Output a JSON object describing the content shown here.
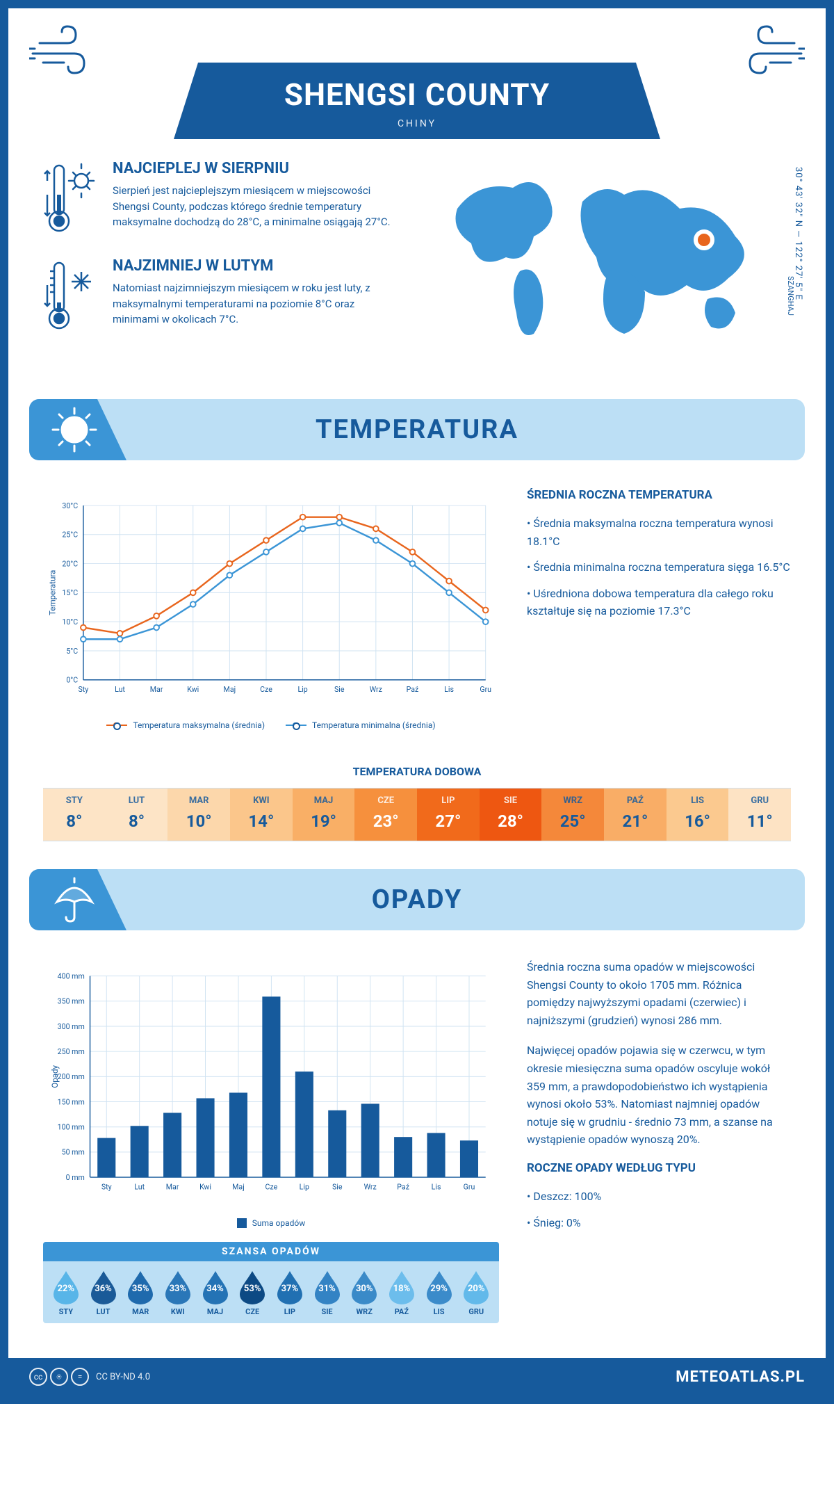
{
  "header": {
    "title": "SHENGSI COUNTY",
    "country": "CHINY",
    "coords": "30° 43' 32\" N — 122° 27' 5\" E",
    "timezone": "SZANGHAJ"
  },
  "warmest": {
    "heading": "NAJCIEPLEJ W SIERPNIU",
    "text": "Sierpień jest najcieplejszym miesiącem w miejscowości Shengsi County, podczas którego średnie temperatury maksymalne dochodzą do 28°C, a minimalne osiągają 27°C."
  },
  "coldest": {
    "heading": "NAJZIMNIEJ W LUTYM",
    "text": "Natomiast najzimniejszym miesiącem w roku jest luty, z maksymalnymi temperaturami na poziomie 8°C oraz minimami w okolicach 7°C."
  },
  "temperature": {
    "section_title": "TEMPERATURA",
    "chart": {
      "type": "line",
      "months": [
        "Sty",
        "Lut",
        "Mar",
        "Kwi",
        "Maj",
        "Cze",
        "Lip",
        "Sie",
        "Wrz",
        "Paź",
        "Lis",
        "Gru"
      ],
      "series": [
        {
          "name": "Temperatura maksymalna (średnia)",
          "color": "#e8651d",
          "values": [
            9,
            8,
            11,
            15,
            20,
            24,
            28,
            28,
            26,
            22,
            17,
            12
          ]
        },
        {
          "name": "Temperatura minimalna (średnia)",
          "color": "#3b95d6",
          "values": [
            7,
            7,
            9,
            13,
            18,
            22,
            26,
            27,
            24,
            20,
            15,
            10
          ]
        }
      ],
      "ylim": [
        0,
        30
      ],
      "ytick_step": 5,
      "yunit": "°C",
      "ylabel": "Temperatura",
      "grid_color": "#d0e3f2",
      "axis_color": "#165a9c",
      "font_size": 11
    },
    "side": {
      "heading": "ŚREDNIA ROCZNA TEMPERATURA",
      "bullets": [
        "• Średnia maksymalna roczna temperatura wynosi 18.1°C",
        "• Średnia minimalna roczna temperatura sięga 16.5°C",
        "• Uśredniona dobowa temperatura dla całego roku kształtuje się na poziomie 17.3°C"
      ]
    },
    "daily": {
      "title": "TEMPERATURA DOBOWA",
      "months": [
        "STY",
        "LUT",
        "MAR",
        "KWI",
        "MAJ",
        "CZE",
        "LIP",
        "SIE",
        "WRZ",
        "PAŹ",
        "LIS",
        "GRU"
      ],
      "values": [
        "8°",
        "8°",
        "10°",
        "14°",
        "19°",
        "23°",
        "27°",
        "28°",
        "25°",
        "21°",
        "16°",
        "11°"
      ],
      "colors": [
        "#fde4c6",
        "#fde4c6",
        "#fcd7ab",
        "#fbc68b",
        "#f9af66",
        "#f6903d",
        "#f16a1b",
        "#ee5711",
        "#f4883a",
        "#f9ad66",
        "#fbc98f",
        "#fde3c4"
      ],
      "text_color": "#165a9c",
      "hot_text_color": "#ffffff"
    }
  },
  "precipitation": {
    "section_title": "OPADY",
    "chart": {
      "type": "bar",
      "months": [
        "Sty",
        "Lut",
        "Mar",
        "Kwi",
        "Maj",
        "Cze",
        "Lip",
        "Sie",
        "Wrz",
        "Paź",
        "Lis",
        "Gru"
      ],
      "values": [
        78,
        102,
        128,
        157,
        168,
        359,
        210,
        133,
        146,
        80,
        88,
        73
      ],
      "bar_color": "#165a9c",
      "ylim": [
        0,
        400
      ],
      "ytick_step": 50,
      "yunit": " mm",
      "ylabel": "Opady",
      "legend": "Suma opadów",
      "grid_color": "#d0e3f2",
      "axis_color": "#165a9c",
      "font_size": 11,
      "bar_width": 0.55
    },
    "side": {
      "p1": "Średnia roczna suma opadów w miejscowości Shengsi County to około 1705 mm. Różnica pomiędzy najwyższymi opadami (czerwiec) i najniższymi (grudzień) wynosi 286 mm.",
      "p2": "Najwięcej opadów pojawia się w czerwcu, w tym okresie miesięczna suma opadów oscyluje wokół 359 mm, a prawdopodobieństwo ich wystąpienia wynosi około 53%. Natomiast najmniej opadów notuje się w grudniu - średnio 73 mm, a szanse na wystąpienie opadów wynoszą 20%.",
      "type_heading": "ROCZNE OPADY WEDŁUG TYPU",
      "type_bullets": [
        "• Deszcz: 100%",
        "• Śnieg: 0%"
      ]
    },
    "chance": {
      "title": "SZANSA OPADÓW",
      "months": [
        "STY",
        "LUT",
        "MAR",
        "KWI",
        "MAJ",
        "CZE",
        "LIP",
        "SIE",
        "WRZ",
        "PAŹ",
        "LIS",
        "GRU"
      ],
      "values": [
        "22%",
        "36%",
        "35%",
        "33%",
        "34%",
        "53%",
        "37%",
        "31%",
        "30%",
        "18%",
        "29%",
        "20%"
      ],
      "colors": [
        "#58b5e8",
        "#1a5a98",
        "#1f6aad",
        "#2a77b8",
        "#2473b5",
        "#0d4a84",
        "#2170b2",
        "#3383c4",
        "#3a8ac8",
        "#6cbdec",
        "#3b8bca",
        "#62b9ea"
      ]
    }
  },
  "footer": {
    "license": "CC BY-ND 4.0",
    "brand": "METEOATLAS.PL"
  }
}
